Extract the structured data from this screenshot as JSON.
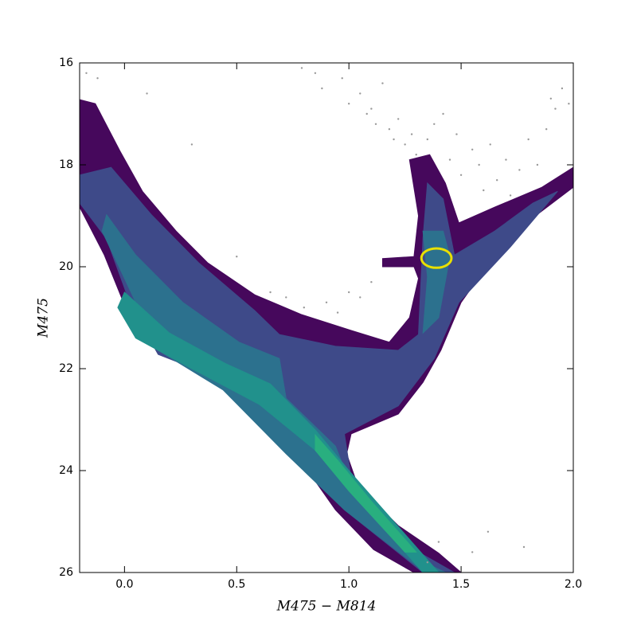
{
  "chart_data": {
    "type": "contour",
    "xlabel": "M475 − M814",
    "ylabel": "M475",
    "xlim": [
      -0.2,
      2.0
    ],
    "ylim": [
      16,
      26
    ],
    "y_inverted": true,
    "xticks": [
      {
        "value": 0,
        "label": "0.0"
      },
      {
        "value": 0.5,
        "label": "0.5"
      },
      {
        "value": 1,
        "label": "1.0"
      },
      {
        "value": 1.5,
        "label": "1.5"
      },
      {
        "value": 2,
        "label": "2.0"
      }
    ],
    "yticks": [
      16,
      18,
      20,
      22,
      24,
      26
    ],
    "contours": [
      {
        "color": "#46085c",
        "x": [
          -0.2,
          -0.13,
          -0.02,
          0.08,
          0.23,
          0.37,
          0.58,
          0.79,
          1.01,
          1.18,
          1.27,
          1.31,
          1.29,
          1.15,
          1.15,
          1.29,
          1.31,
          1.27,
          1.36,
          1.43,
          1.49,
          1.65,
          1.86,
          2.0,
          2.0,
          1.79,
          1.65,
          1.5,
          1.41,
          1.33,
          1.22,
          1.01,
          0.99,
          1.04,
          1.22,
          1.4,
          1.5,
          1.29,
          1.11,
          0.94,
          0.79,
          0.62,
          0.44,
          0.15,
          0.01,
          -0.09,
          -0.2
        ],
        "y": [
          16.72,
          16.8,
          17.73,
          18.52,
          19.3,
          19.92,
          20.55,
          20.94,
          21.25,
          21.48,
          21.0,
          20.23,
          20.0,
          20.0,
          19.84,
          19.8,
          19.0,
          17.9,
          17.8,
          18.36,
          19.14,
          18.83,
          18.44,
          18.05,
          18.44,
          19.14,
          19.77,
          20.7,
          21.64,
          22.27,
          22.89,
          23.28,
          23.67,
          24.3,
          25.08,
          25.62,
          26.0,
          26.0,
          25.55,
          24.77,
          23.83,
          22.89,
          22.27,
          21.64,
          20.86,
          19.77,
          18.83
        ]
      },
      {
        "color": "#3e4a89",
        "x": [
          -0.2,
          -0.06,
          0.12,
          0.33,
          0.58,
          0.69,
          0.94,
          1.22,
          1.31,
          1.33,
          1.35,
          1.42,
          1.47,
          1.65,
          1.82,
          1.93,
          1.72,
          1.49,
          1.38,
          1.22,
          0.98,
          1.01,
          1.29,
          1.47,
          1.33,
          0.98,
          0.72,
          0.47,
          0.15,
          0.03,
          -0.08,
          -0.2
        ],
        "y": [
          18.2,
          18.05,
          18.98,
          19.92,
          20.86,
          21.33,
          21.56,
          21.64,
          21.33,
          19.45,
          18.36,
          18.67,
          19.77,
          19.3,
          18.75,
          18.52,
          19.61,
          20.7,
          21.8,
          22.73,
          23.28,
          24.14,
          25.55,
          26.0,
          26.0,
          24.77,
          23.52,
          22.27,
          21.72,
          20.78,
          19.45,
          18.75
        ]
      },
      {
        "color": "#2c718e",
        "x": [
          -0.08,
          0.05,
          0.26,
          0.51,
          0.69,
          0.72,
          0.94,
          1.01,
          1.29,
          1.43,
          1.34,
          0.98,
          0.72,
          0.44,
          0.15,
          0.0,
          -0.1
        ],
        "y": [
          18.98,
          19.77,
          20.7,
          21.48,
          21.8,
          22.58,
          23.52,
          24.3,
          25.7,
          26.0,
          26.0,
          24.77,
          23.67,
          22.42,
          21.64,
          20.23,
          19.3
        ]
      },
      {
        "color": "#2c718e",
        "x": [
          1.33,
          1.42,
          1.45,
          1.4,
          1.33,
          1.35
        ],
        "y": [
          19.3,
          19.3,
          19.8,
          21.0,
          21.3,
          20.2
        ]
      },
      {
        "color": "#21918c",
        "x": [
          0.0,
          0.2,
          0.45,
          0.65,
          0.85,
          1.0,
          1.2,
          1.4,
          1.33,
          1.05,
          0.85,
          0.6,
          0.3,
          0.05,
          -0.03
        ],
        "y": [
          20.5,
          21.3,
          21.9,
          22.3,
          23.2,
          24.0,
          25.0,
          26.0,
          26.0,
          24.6,
          23.6,
          22.7,
          22.0,
          21.4,
          20.8
        ]
      },
      {
        "color": "#29af7f",
        "x": [
          0.85,
          0.95,
          1.1,
          1.3,
          1.25,
          1.0,
          0.85
        ],
        "y": [
          23.3,
          23.8,
          24.6,
          25.6,
          25.6,
          24.4,
          23.6
        ]
      }
    ],
    "points": {
      "color": "#999999",
      "x": [
        -0.17,
        -0.12,
        0.79,
        0.85,
        0.88,
        0.97,
        1.0,
        1.05,
        1.08,
        1.1,
        1.12,
        1.15,
        1.18,
        1.2,
        1.22,
        1.25,
        1.28,
        1.3,
        1.35,
        1.38,
        1.42,
        1.45,
        1.48,
        1.5,
        1.55,
        1.58,
        1.6,
        1.63,
        1.66,
        1.7,
        1.72,
        1.76,
        1.8,
        1.84,
        1.88,
        1.92,
        1.95,
        1.98,
        0.72,
        0.8,
        0.9,
        1.0,
        1.1,
        0.95,
        0.65,
        0.5,
        1.05,
        0.3,
        1.62,
        1.78,
        1.55,
        1.35,
        1.4,
        1.9,
        0.1
      ],
      "y": [
        16.2,
        16.3,
        16.1,
        16.2,
        16.5,
        16.3,
        16.8,
        16.6,
        17.0,
        16.9,
        17.2,
        16.4,
        17.3,
        17.5,
        17.1,
        17.6,
        17.4,
        17.8,
        17.5,
        17.2,
        17.0,
        17.9,
        17.4,
        18.2,
        17.7,
        18.0,
        18.5,
        17.6,
        18.3,
        17.9,
        18.6,
        18.1,
        17.5,
        18.0,
        17.3,
        16.9,
        16.5,
        16.8,
        20.6,
        20.8,
        20.7,
        20.5,
        20.3,
        20.9,
        20.5,
        19.8,
        20.6,
        17.6,
        25.2,
        25.5,
        25.6,
        25.8,
        25.4,
        16.7,
        16.6
      ]
    },
    "highlight": {
      "color": "#e8e000",
      "x": 1.39,
      "y": 19.83,
      "rx": 0.067,
      "ry": 0.19
    }
  }
}
